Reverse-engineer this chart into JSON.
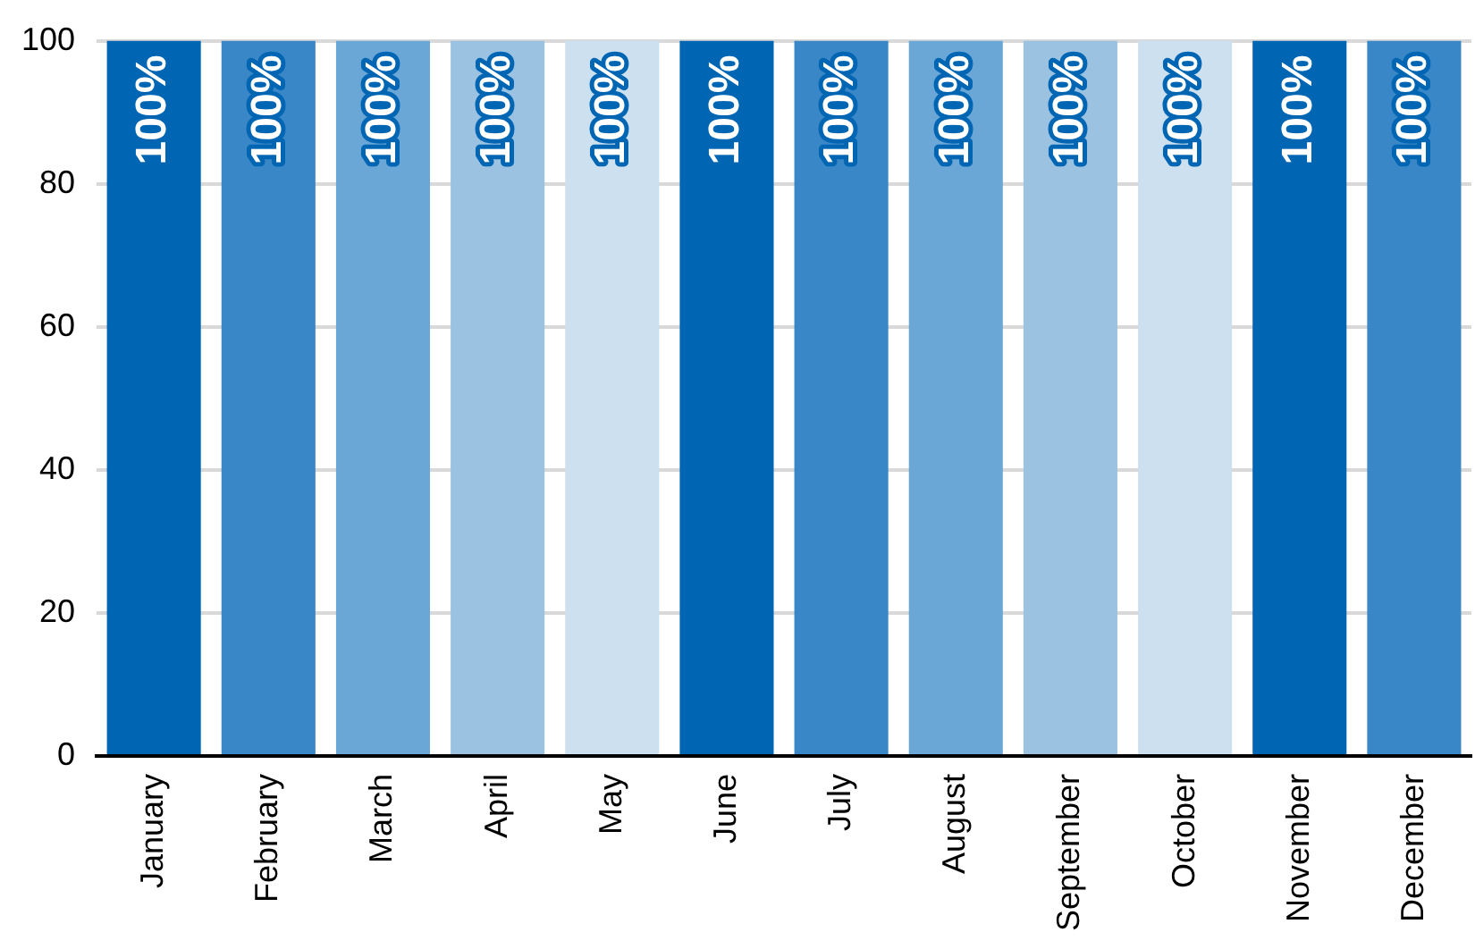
{
  "chart_data": {
    "type": "bar",
    "categories": [
      "January",
      "February",
      "March",
      "April",
      "May",
      "June",
      "July",
      "August",
      "September",
      "October",
      "November",
      "December"
    ],
    "values": [
      100,
      100,
      100,
      100,
      100,
      100,
      100,
      100,
      100,
      100,
      100,
      100
    ],
    "colors": [
      "#0066b3",
      "#3a87c7",
      "#6aa6d6",
      "#9cc2e2",
      "#cde0ef",
      "#0066b3",
      "#3a87c7",
      "#6aa6d6",
      "#9cc2e2",
      "#cde0ef",
      "#0066b3",
      "#3a87c7"
    ],
    "value_labels": [
      "100%",
      "100%",
      "100%",
      "100%",
      "100%",
      "100%",
      "100%",
      "100%",
      "100%",
      "100%",
      "100%",
      "100%"
    ],
    "ylim": [
      0,
      100
    ],
    "yticks": [
      0,
      20,
      40,
      60,
      80,
      100
    ],
    "grid": "y",
    "legend": false
  }
}
